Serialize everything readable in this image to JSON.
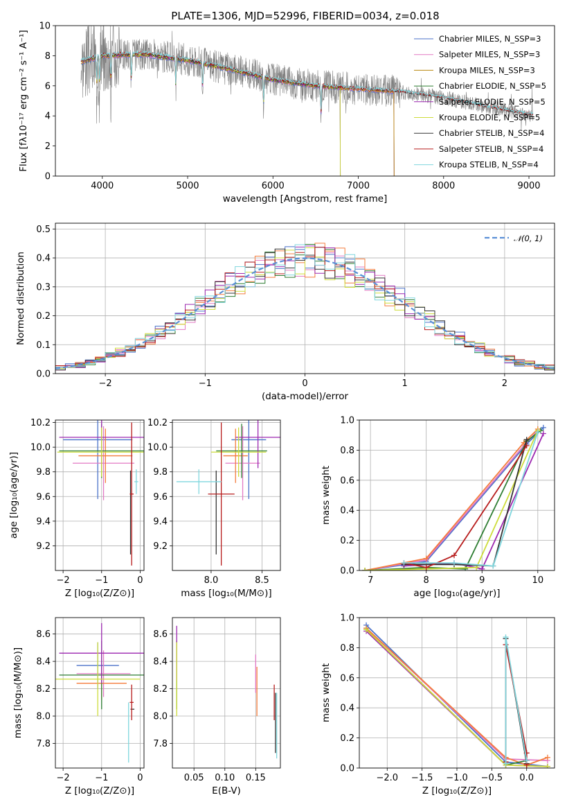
{
  "figure": {
    "title": "PLATE=1306, MJD=52996, FIBERID=0034, z=0.018"
  },
  "chart_data": [
    {
      "id": "spectrum",
      "type": "line",
      "xlabel": "wavelength [Angstrom, rest frame]",
      "ylabel": "Flux [fλ10⁻¹⁷ erg cm⁻² s⁻¹ A⁻¹]",
      "xlim": [
        3450,
        9300
      ],
      "ylim": [
        0,
        10
      ],
      "xticks": [
        4000,
        5000,
        6000,
        7000,
        8000,
        9000
      ],
      "yticks": [
        0,
        2,
        4,
        6,
        8,
        10
      ],
      "observed": {
        "color": "#808080",
        "x_start": 3750,
        "x_end": 9050
      },
      "continuum": {
        "x": [
          3750,
          4000,
          4500,
          5000,
          5500,
          6000,
          6500,
          7000,
          7500,
          8000,
          8500,
          9000
        ],
        "y": [
          7.6,
          8.0,
          8.1,
          7.7,
          7.1,
          6.4,
          6.0,
          5.8,
          5.6,
          5.2,
          4.6,
          4.1
        ]
      },
      "legend_position": "upper right",
      "series": [
        {
          "name": "Chabrier MILES, N_SSP=3",
          "color": "#4a72c9",
          "x_end": 7420
        },
        {
          "name": "Salpeter MILES, N_SSP=3",
          "color": "#e279c4",
          "x_end": 7420
        },
        {
          "name": "Kroupa MILES, N_SSP=3",
          "color": "#b8860b",
          "x_end": 7420
        },
        {
          "name": "Chabrier ELODIE, N_SSP=5",
          "color": "#2e7d32",
          "x_end": 6790
        },
        {
          "name": "Salpeter ELODIE, N_SSP=5",
          "color": "#9c27b0",
          "x_end": 6790
        },
        {
          "name": "Kroupa ELODIE, N_SSP=5",
          "color": "#cddc39",
          "x_end": 6790
        },
        {
          "name": "Chabrier STELIB, N_SSP=4",
          "color": "#333333",
          "x_end": 9050
        },
        {
          "name": "Salpeter STELIB, N_SSP=4",
          "color": "#b71c1c",
          "x_end": 9050
        },
        {
          "name": "Kroupa STELIB, N_SSP=4",
          "color": "#7fd6dd",
          "x_end": 9050
        }
      ]
    },
    {
      "id": "residuals",
      "type": "line",
      "xlabel": "(data-model)/error",
      "ylabel": "Normed distribution",
      "xlim": [
        -2.5,
        2.5
      ],
      "ylim": [
        0,
        0.52
      ],
      "xticks": [
        -2,
        -1,
        0,
        1,
        2
      ],
      "yticks": [
        0.0,
        0.1,
        0.2,
        0.3,
        0.4,
        0.5
      ],
      "grid": true,
      "bin_width": 0.1,
      "gaussian": {
        "label": "𝒩(0, 1)",
        "color": "#5a8fd6"
      },
      "legend_position": "upper right",
      "histograms": [
        {
          "color": "#4a72c9",
          "seed": 1
        },
        {
          "color": "#e279c4",
          "seed": 2
        },
        {
          "color": "#f47c3c",
          "seed": 3
        },
        {
          "color": "#2e7d32",
          "seed": 4
        },
        {
          "color": "#9c27b0",
          "seed": 5
        },
        {
          "color": "#cddc39",
          "seed": 6
        },
        {
          "color": "#333333",
          "seed": 7
        },
        {
          "color": "#b71c1c",
          "seed": 8
        },
        {
          "color": "#7fd6dd",
          "seed": 9
        }
      ]
    },
    {
      "id": "age-vs-z",
      "type": "scatter",
      "xlabel": "Z [log₁₀(Z/Z⊙)]",
      "ylabel": "age  [log₁₀(age/yr)]",
      "xlim": [
        -2.2,
        0.1
      ],
      "ylim": [
        9.0,
        10.22
      ],
      "xticks": [
        -2,
        -1,
        0
      ],
      "yticks": [
        9.2,
        9.4,
        9.6,
        9.8,
        10.0,
        10.2
      ],
      "grid": true,
      "points": [
        {
          "color": "#4a72c9",
          "x": -1.1,
          "xerr": 0.9,
          "y": 10.06,
          "yerr": 0.48
        },
        {
          "color": "#e279c4",
          "x": -0.95,
          "xerr": 0.8,
          "y": 9.87,
          "yerr": 0.3
        },
        {
          "color": "#f47c3c",
          "x": -0.9,
          "xerr": 0.7,
          "y": 9.93,
          "yerr": 0.22
        },
        {
          "color": "#2e7d32",
          "x": -1.0,
          "xerr": 1.1,
          "y": 9.97,
          "yerr": 0.22
        },
        {
          "color": "#9c27b0",
          "x": -1.0,
          "xerr": 1.1,
          "y": 10.08,
          "yerr": 0.25
        },
        {
          "color": "#cddc39",
          "x": -1.0,
          "xerr": 1.15,
          "y": 9.96,
          "yerr": 0.2
        },
        {
          "color": "#333333",
          "x": -0.25,
          "xerr": 0.0,
          "y": 9.47,
          "yerr": 0.34
        },
        {
          "color": "#b71c1c",
          "x": -0.22,
          "xerr": 0.05,
          "y": 9.62,
          "yerr": 0.58
        },
        {
          "color": "#7fd6dd",
          "x": -0.1,
          "xerr": 0.05,
          "y": 9.72,
          "yerr": 0.1
        }
      ]
    },
    {
      "id": "age-vs-mass",
      "type": "scatter",
      "xlabel": "mass [log₁₀(M/M⊙)]",
      "ylabel": "",
      "xlim": [
        7.62,
        8.68
      ],
      "ylim": [
        9.0,
        10.22
      ],
      "xticks": [
        8.0,
        8.5
      ],
      "yticks": [
        9.2,
        9.4,
        9.6,
        9.8,
        10.0,
        10.2
      ],
      "grid": true,
      "points": [
        {
          "color": "#4a72c9",
          "x": 8.37,
          "xerr": 0.17,
          "y": 10.06,
          "yerr": 0.48
        },
        {
          "color": "#e279c4",
          "x": 8.31,
          "xerr": 0.17,
          "y": 9.87,
          "yerr": 0.3
        },
        {
          "color": "#f47c3c",
          "x": 8.24,
          "xerr": 0.12,
          "y": 9.93,
          "yerr": 0.22
        },
        {
          "color": "#2e7d32",
          "x": 8.3,
          "xerr": 0.25,
          "y": 9.97,
          "yerr": 0.22
        },
        {
          "color": "#9c27b0",
          "x": 8.46,
          "xerr": 0.22,
          "y": 10.08,
          "yerr": 0.25
        },
        {
          "color": "#cddc39",
          "x": 8.27,
          "xerr": 0.27,
          "y": 9.96,
          "yerr": 0.2
        },
        {
          "color": "#333333",
          "x": 8.05,
          "xerr": 0.0,
          "y": 9.47,
          "yerr": 0.34
        },
        {
          "color": "#b71c1c",
          "x": 8.1,
          "xerr": 0.13,
          "y": 9.62,
          "yerr": 0.58
        },
        {
          "color": "#7fd6dd",
          "x": 7.88,
          "xerr": 0.22,
          "y": 9.72,
          "yerr": 0.1
        }
      ]
    },
    {
      "id": "weight-vs-age",
      "type": "line",
      "xlabel": "age  [log₁₀(age/yr)]",
      "ylabel": "mass weight",
      "xlim": [
        6.8,
        10.3
      ],
      "ylim": [
        0,
        1.0
      ],
      "xticks": [
        7,
        8,
        9,
        10
      ],
      "yticks": [
        0.0,
        0.2,
        0.4,
        0.6,
        0.8,
        1.0
      ],
      "grid": true,
      "series": [
        {
          "color": "#4a72c9",
          "x": [
            6.9,
            8.0,
            9.8,
            10.1
          ],
          "y": [
            0.0,
            0.06,
            0.84,
            0.95
          ]
        },
        {
          "color": "#e279c4",
          "x": [
            6.9,
            8.0,
            9.75,
            10.0
          ],
          "y": [
            0.0,
            0.07,
            0.83,
            0.93
          ]
        },
        {
          "color": "#f47c3c",
          "x": [
            6.9,
            8.0,
            9.75,
            10.0
          ],
          "y": [
            0.0,
            0.08,
            0.85,
            0.94
          ]
        },
        {
          "color": "#2e7d32",
          "x": [
            6.9,
            8.0,
            8.7,
            9.8,
            10.05
          ],
          "y": [
            0.0,
            0.02,
            0.01,
            0.86,
            0.93
          ]
        },
        {
          "color": "#9c27b0",
          "x": [
            7.6,
            8.5,
            9.0,
            10.1
          ],
          "y": [
            0.03,
            0.05,
            0.01,
            0.91
          ]
        },
        {
          "color": "#cddc39",
          "x": [
            6.9,
            8.0,
            8.9,
            10.0
          ],
          "y": [
            0.0,
            0.01,
            0.02,
            0.93
          ]
        },
        {
          "color": "#333333",
          "x": [
            7.6,
            8.5,
            9.2,
            9.8
          ],
          "y": [
            0.04,
            0.04,
            0.03,
            0.87
          ]
        },
        {
          "color": "#b71c1c",
          "x": [
            7.6,
            8.0,
            8.5,
            9.8
          ],
          "y": [
            0.05,
            0.02,
            0.1,
            0.83
          ]
        },
        {
          "color": "#7fd6dd",
          "x": [
            7.6,
            8.5,
            9.2,
            10.0
          ],
          "y": [
            0.05,
            0.05,
            0.03,
            0.92
          ]
        }
      ]
    },
    {
      "id": "mass-vs-z",
      "type": "scatter",
      "xlabel": "Z [log₁₀(Z/Z⊙)]",
      "ylabel": "mass [log₁₀(M/M⊙)]",
      "xlim": [
        -2.2,
        0.1
      ],
      "ylim": [
        7.62,
        8.72
      ],
      "xticks": [
        -2,
        -1,
        0
      ],
      "yticks": [
        7.8,
        8.0,
        8.2,
        8.4,
        8.6
      ],
      "grid": true,
      "points": [
        {
          "color": "#4a72c9",
          "x": -1.1,
          "xerr": 0.55,
          "y": 8.37,
          "yerr": 0.17
        },
        {
          "color": "#e279c4",
          "x": -0.95,
          "xerr": 0.7,
          "y": 8.31,
          "yerr": 0.17
        },
        {
          "color": "#f47c3c",
          "x": -1.0,
          "xerr": 0.65,
          "y": 8.24,
          "yerr": 0.12
        },
        {
          "color": "#2e7d32",
          "x": -1.0,
          "xerr": 1.1,
          "y": 8.3,
          "yerr": 0.25
        },
        {
          "color": "#9c27b0",
          "x": -1.0,
          "xerr": 1.1,
          "y": 8.46,
          "yerr": 0.22
        },
        {
          "color": "#cddc39",
          "x": -1.1,
          "xerr": 1.1,
          "y": 8.27,
          "yerr": 0.27
        },
        {
          "color": "#333333",
          "x": -0.2,
          "xerr": 0.05,
          "y": 8.05,
          "yerr": 0.0
        },
        {
          "color": "#b71c1c",
          "x": -0.22,
          "xerr": 0.05,
          "y": 8.1,
          "yerr": 0.13
        },
        {
          "color": "#7fd6dd",
          "x": -0.3,
          "xerr": 0.0,
          "y": 7.88,
          "yerr": 0.22
        }
      ]
    },
    {
      "id": "mass-vs-ebv",
      "type": "scatter",
      "xlabel": "E(B-V)",
      "ylabel": "",
      "xlim": [
        0.015,
        0.19
      ],
      "ylim": [
        7.62,
        8.72
      ],
      "xticks": [
        0.05,
        0.1,
        0.15
      ],
      "xtick_labels": [
        "0.05",
        "0.10",
        "0.15"
      ],
      "yticks": [
        7.8,
        8.0,
        8.2,
        8.4,
        8.6
      ],
      "grid": true,
      "points": [
        {
          "color": "#4a72c9",
          "x": 0.022,
          "xerr": 0.0,
          "y": 8.37,
          "yerr": 0.17
        },
        {
          "color": "#e279c4",
          "x": 0.15,
          "xerr": 0.0,
          "y": 8.31,
          "yerr": 0.14
        },
        {
          "color": "#f47c3c",
          "x": 0.152,
          "xerr": 0.0,
          "y": 8.18,
          "yerr": 0.18
        },
        {
          "color": "#2e7d32",
          "x": 0.022,
          "xerr": 0.0,
          "y": 8.3,
          "yerr": 0.25
        },
        {
          "color": "#9c27b0",
          "x": 0.022,
          "xerr": 0.0,
          "y": 8.46,
          "yerr": 0.2
        },
        {
          "color": "#cddc39",
          "x": 0.022,
          "xerr": 0.0,
          "y": 8.27,
          "yerr": 0.27
        },
        {
          "color": "#333333",
          "x": 0.182,
          "xerr": 0.0,
          "y": 7.95,
          "yerr": 0.22
        },
        {
          "color": "#b71c1c",
          "x": 0.18,
          "xerr": 0.0,
          "y": 8.1,
          "yerr": 0.13
        },
        {
          "color": "#7fd6dd",
          "x": 0.184,
          "xerr": 0.0,
          "y": 7.93,
          "yerr": 0.24
        }
      ]
    },
    {
      "id": "weight-vs-z",
      "type": "line",
      "xlabel": "Z [log₁₀(Z/Z⊙)]",
      "ylabel": "mass weight",
      "xlim": [
        -2.4,
        0.4
      ],
      "ylim": [
        0,
        1.0
      ],
      "xticks": [
        -2.0,
        -1.5,
        -1.0,
        -0.5,
        0.0
      ],
      "xtick_labels": [
        "−2.0",
        "−1.5",
        "−1.0",
        "−0.5",
        "0.0"
      ],
      "yticks": [
        0.0,
        0.2,
        0.4,
        0.6,
        0.8,
        1.0
      ],
      "grid": true,
      "series": [
        {
          "color": "#4a72c9",
          "x": [
            -2.3,
            -0.3,
            0.3
          ],
          "y": [
            0.95,
            0.04,
            0.01
          ]
        },
        {
          "color": "#e279c4",
          "x": [
            -2.3,
            -0.3,
            0.3
          ],
          "y": [
            0.93,
            0.06,
            0.05
          ]
        },
        {
          "color": "#f47c3c",
          "x": [
            -2.3,
            -0.3,
            0.0,
            0.3
          ],
          "y": [
            0.93,
            0.07,
            0.02,
            0.07
          ]
        },
        {
          "color": "#2e7d32",
          "x": [
            -2.3,
            -0.3,
            0.0
          ],
          "y": [
            0.92,
            0.02,
            0.05
          ]
        },
        {
          "color": "#9c27b0",
          "x": [
            -2.3,
            -0.3,
            0.3
          ],
          "y": [
            0.91,
            0.02,
            0.01
          ]
        },
        {
          "color": "#cddc39",
          "x": [
            -2.3,
            -0.3,
            0.3
          ],
          "y": [
            0.92,
            0.02,
            0.01
          ]
        },
        {
          "color": "#333333",
          "x": [
            -0.3,
            -0.3,
            0.0
          ],
          "y": [
            0.04,
            0.86,
            0.03
          ]
        },
        {
          "color": "#b71c1c",
          "x": [
            -0.3,
            -0.3,
            0.0,
            0.0
          ],
          "y": [
            0.04,
            0.82,
            0.1,
            0.02
          ]
        },
        {
          "color": "#7fd6dd",
          "x": [
            -0.3,
            -0.3,
            0.0
          ],
          "y": [
            0.03,
            0.87,
            0.05
          ]
        }
      ]
    }
  ]
}
